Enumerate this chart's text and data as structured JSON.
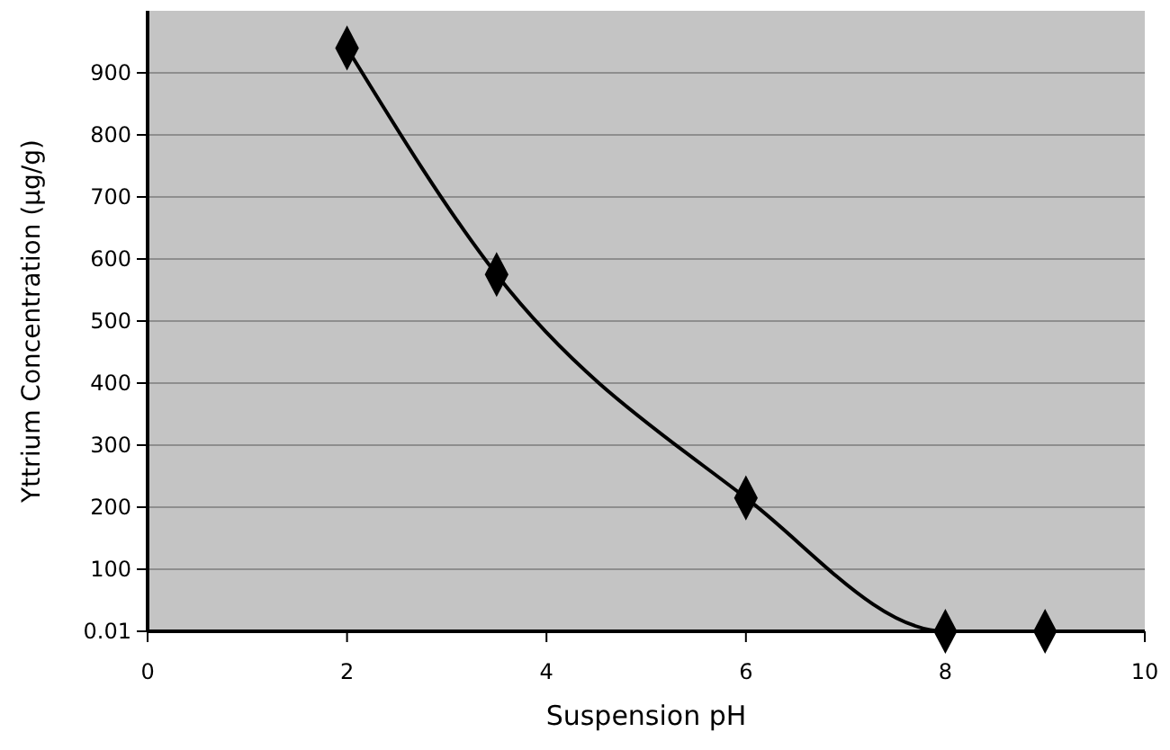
{
  "chart_data": {
    "type": "line",
    "xlabel": "Suspension pH",
    "ylabel": "Yttrium Concentration (µg/g)",
    "x": [
      2,
      3.5,
      6,
      8,
      9
    ],
    "series": [
      {
        "color": "#000000",
        "values": [
          940,
          575,
          215,
          0.01,
          0.01
        ]
      }
    ],
    "xlim": [
      0,
      10
    ],
    "xticks": [
      0,
      2,
      4,
      6,
      8,
      10
    ],
    "ylim": [
      0.01,
      1000
    ],
    "yticks": [
      0.01,
      100,
      200,
      300,
      400,
      500,
      600,
      700,
      800,
      900
    ],
    "grid": "y",
    "marker": "diamond",
    "line_style": "solid"
  }
}
